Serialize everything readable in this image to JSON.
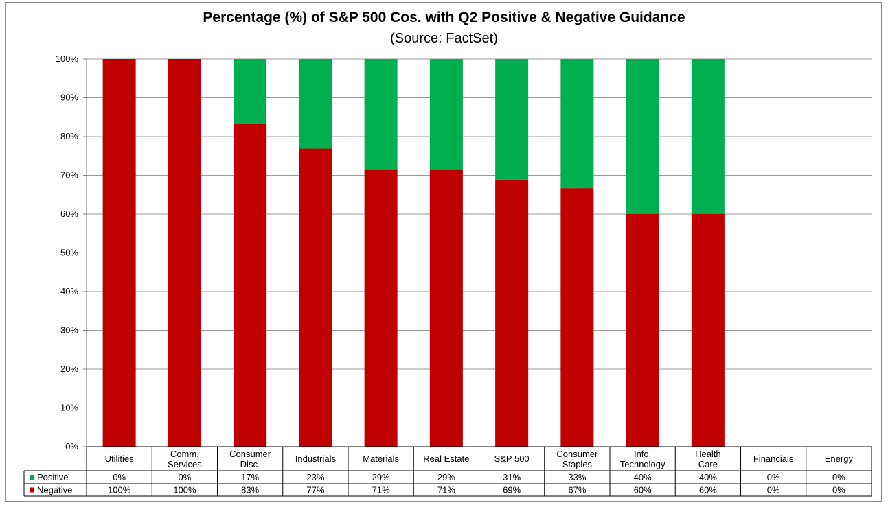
{
  "chart_data": {
    "type": "bar",
    "stacked": true,
    "title": "Percentage (%) of S&P 500 Cos. with Q2 Positive & Negative Guidance",
    "subtitle": "(Source: FactSet)",
    "ylim": [
      0,
      100
    ],
    "y_ticks": [
      "0%",
      "10%",
      "20%",
      "30%",
      "40%",
      "50%",
      "60%",
      "70%",
      "80%",
      "90%",
      "100%"
    ],
    "grid": true,
    "legend": "data-table",
    "categories": [
      [
        "Utilities"
      ],
      [
        "Comm.",
        "Services"
      ],
      [
        "Consumer",
        "Disc."
      ],
      [
        "Industrials"
      ],
      [
        "Materials"
      ],
      [
        "Real Estate"
      ],
      [
        "S&P 500"
      ],
      [
        "Consumer",
        "Staples"
      ],
      [
        "Info.",
        "Technology"
      ],
      [
        "Health",
        "Care"
      ],
      [
        "Financials"
      ],
      [
        "Energy"
      ]
    ],
    "series": [
      {
        "name": "Negative",
        "color": "#c00000",
        "values": [
          100,
          100,
          83.3,
          76.9,
          71.4,
          71.4,
          68.9,
          66.7,
          60,
          60,
          0,
          0
        ],
        "labels": [
          "100%",
          "100%",
          "83%",
          "77%",
          "71%",
          "71%",
          "69%",
          "67%",
          "60%",
          "60%",
          "0%",
          "0%"
        ]
      },
      {
        "name": "Positive",
        "color": "#00b050",
        "values": [
          0,
          0,
          16.7,
          23.1,
          28.6,
          28.6,
          31.1,
          33.3,
          40,
          40,
          0,
          0
        ],
        "labels": [
          "0%",
          "0%",
          "17%",
          "23%",
          "29%",
          "29%",
          "31%",
          "33%",
          "40%",
          "40%",
          "0%",
          "0%"
        ]
      }
    ]
  }
}
